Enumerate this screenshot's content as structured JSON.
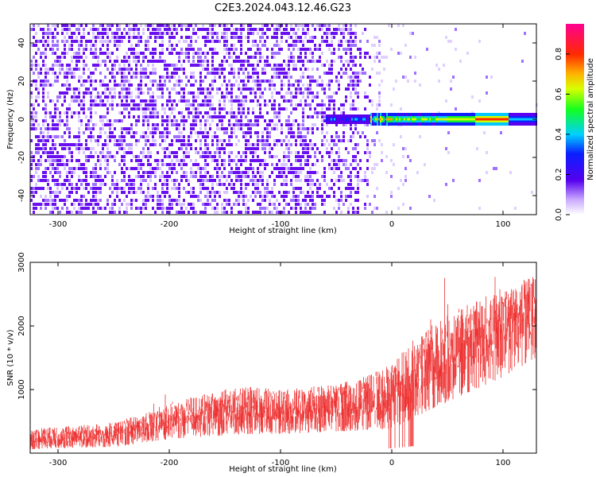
{
  "title": "C2E3.2024.043.12.46.G23",
  "chart_data": [
    {
      "type": "heatmap",
      "xlabel": "Height of straight line (km)",
      "ylabel": "Frequency (Hz)",
      "xlim": [
        -325,
        130
      ],
      "ylim": [
        -50,
        50
      ],
      "xticks": [
        -300,
        -200,
        -100,
        0,
        100
      ],
      "yticks": [
        -40,
        -20,
        0,
        20,
        40
      ],
      "colorbar": {
        "label": "Normalized spectral amplitude",
        "range": [
          0,
          0.95
        ],
        "ticks": [
          0.0,
          0.2,
          0.4,
          0.6,
          0.8
        ]
      },
      "description_points": {
        "noise_region_x": [
          -325,
          -20
        ],
        "signal_line_frequency_hz": 0,
        "signal_line_x": [
          -60,
          130
        ],
        "signal_peak_x": 90,
        "signal_peak_amplitude": 0.85
      },
      "grid": false
    },
    {
      "type": "line",
      "xlabel": "Height of straight line (km)",
      "ylabel": "SNR (10 * v/v)",
      "xlim": [
        -325,
        130
      ],
      "ylim": [
        0,
        3000
      ],
      "xticks": [
        -300,
        -200,
        -100,
        0,
        100
      ],
      "yticks": [
        1000,
        2000,
        3000
      ],
      "series": [
        {
          "color": "#ee3333",
          "x": [
            -325,
            -300,
            -275,
            -250,
            -225,
            -200,
            -175,
            -150,
            -125,
            -100,
            -75,
            -50,
            -25,
            0,
            25,
            50,
            75,
            100,
            130
          ],
          "y_low": [
            60,
            80,
            80,
            100,
            150,
            220,
            250,
            280,
            300,
            300,
            320,
            340,
            360,
            380,
            600,
            800,
            1000,
            1200,
            1500
          ],
          "y_high": [
            380,
            420,
            450,
            500,
            600,
            800,
            900,
            1000,
            1050,
            1000,
            1050,
            1100,
            1200,
            1400,
            1900,
            2200,
            2400,
            2600,
            2800
          ]
        }
      ],
      "grid": false
    }
  ]
}
